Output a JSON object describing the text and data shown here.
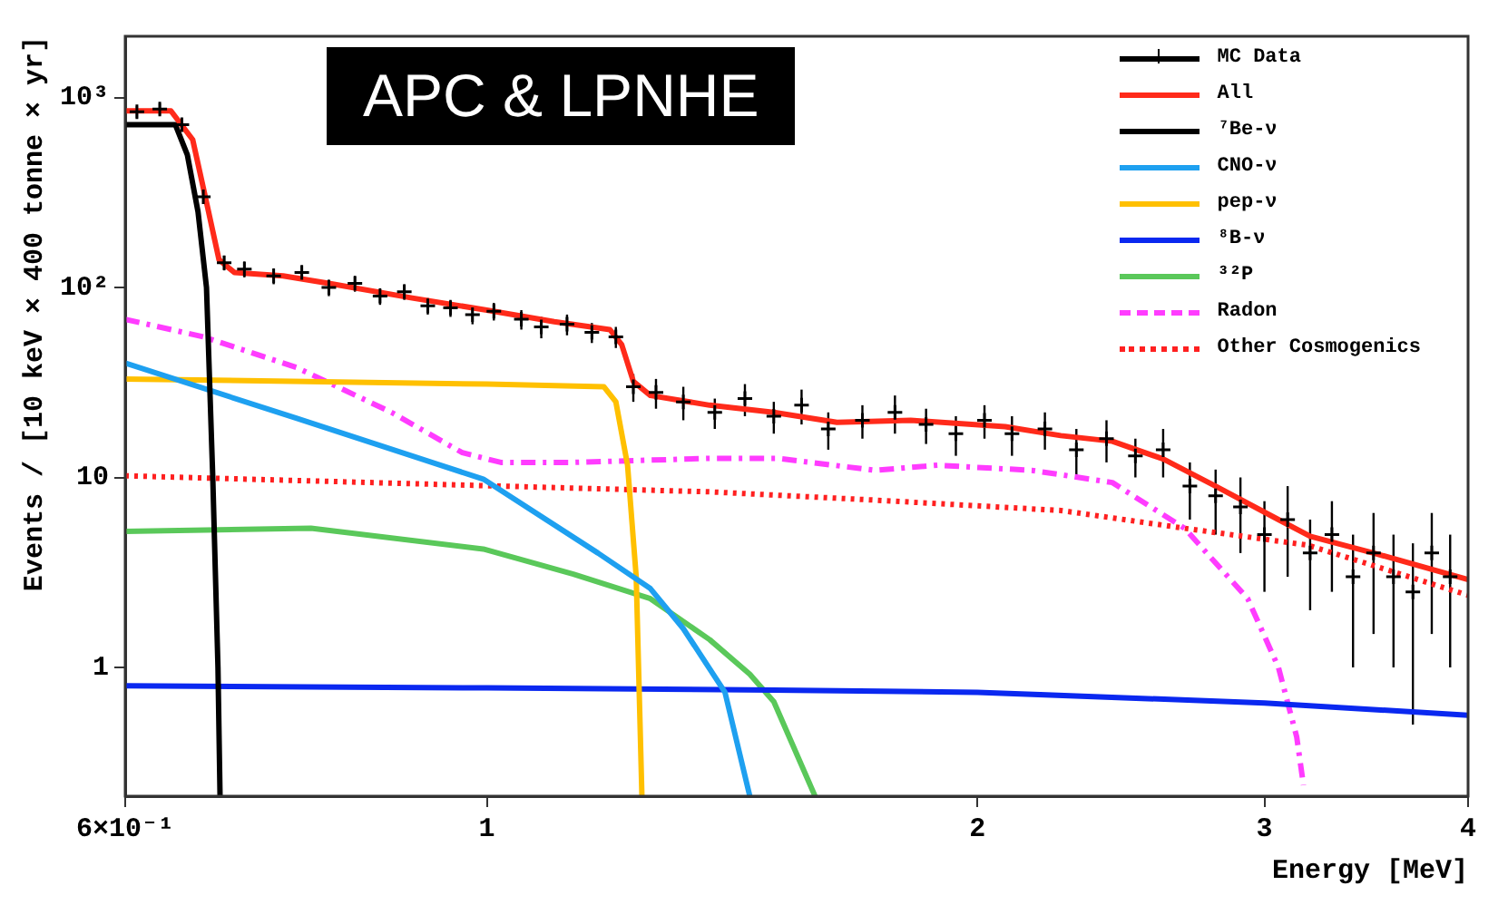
{
  "chart_data": {
    "type": "line",
    "xlabel": "Energy [MeV]",
    "ylabel": "Events / [10 keV × 400 tonne × yr]",
    "annotations": [
      "APC & LPNHE"
    ],
    "log": "xy",
    "grid": false,
    "legend": "top right",
    "xlim": [
      0.6,
      4
    ],
    "xticks": [
      {
        "value": 0.6,
        "label": "6×10⁻¹"
      },
      1,
      2,
      3,
      4
    ],
    "ylim": [
      0.21,
      2100
    ],
    "yticks": [
      1,
      10,
      {
        "value": 100,
        "label": "10²"
      },
      {
        "value": 1000,
        "label": "10³"
      }
    ],
    "series": [
      {
        "name": "MC Data",
        "type": "scatter",
        "marker": "cross",
        "color": "#000000",
        "x": [
          0.61,
          0.63,
          0.65,
          0.67,
          0.69,
          0.71,
          0.74,
          0.77,
          0.8,
          0.83,
          0.86,
          0.89,
          0.92,
          0.95,
          0.98,
          1.01,
          1.05,
          1.08,
          1.12,
          1.16,
          1.2,
          1.23,
          1.27,
          1.32,
          1.38,
          1.44,
          1.5,
          1.56,
          1.62,
          1.7,
          1.78,
          1.86,
          1.94,
          2.02,
          2.1,
          2.2,
          2.3,
          2.4,
          2.5,
          2.6,
          2.7,
          2.8,
          2.9,
          3.0,
          3.1,
          3.2,
          3.3,
          3.4,
          3.5,
          3.6,
          3.7,
          3.8,
          3.9
        ],
        "values": [
          840,
          870,
          720,
          300,
          135,
          125,
          115,
          120,
          100,
          105,
          90,
          95,
          80,
          78,
          72,
          75,
          68,
          62,
          64,
          58,
          55,
          30,
          28,
          25,
          22,
          26,
          21,
          24,
          18,
          20,
          22,
          19,
          17,
          20,
          17,
          18,
          14,
          16,
          13,
          14,
          9,
          8,
          7,
          5,
          6,
          4,
          5,
          3,
          4,
          3,
          2.5,
          4,
          3
        ],
        "errors": [
          60,
          60,
          55,
          25,
          12,
          12,
          11,
          11,
          10,
          10,
          9,
          9,
          8,
          8,
          8,
          8,
          8,
          8,
          8,
          7,
          7,
          5,
          5,
          5,
          4,
          5,
          4,
          5,
          4,
          4,
          5,
          4,
          4,
          4,
          4,
          4,
          4,
          4,
          3,
          4,
          3,
          3,
          3,
          2.5,
          3,
          2,
          2.5,
          2,
          2.5,
          2,
          2,
          2.5,
          2
        ]
      },
      {
        "name": "All",
        "color": "#ff2a1a",
        "line_style": "solid",
        "x": [
          0.6,
          0.64,
          0.66,
          0.675,
          0.685,
          0.7,
          0.75,
          0.8,
          0.9,
          1.0,
          1.1,
          1.19,
          1.21,
          1.23,
          1.26,
          1.37,
          1.5,
          1.64,
          1.82,
          2.08,
          2.25,
          2.42,
          2.6,
          2.8,
          3.06,
          3.2,
          3.5,
          4
        ],
        "values": [
          850,
          850,
          600,
          250,
          140,
          120,
          115,
          105,
          88,
          76,
          66,
          60,
          50,
          32,
          27,
          24,
          22,
          19.5,
          20,
          18.5,
          16.6,
          15.5,
          12.5,
          9,
          6,
          4.9,
          4,
          2.9
        ]
      },
      {
        "name": "⁷Be-ν",
        "color": "#000000",
        "line_style": "solid",
        "x": [
          0.6,
          0.644,
          0.655,
          0.665,
          0.673,
          0.679,
          0.684,
          0.686
        ],
        "values": [
          720,
          720,
          500,
          250,
          100,
          10,
          1,
          0.21
        ]
      },
      {
        "name": "CNO-ν",
        "color": "#1ea0f0",
        "line_style": "solid",
        "x": [
          0.6,
          0.764,
          0.995,
          1.17,
          1.26,
          1.32,
          1.4,
          1.45
        ],
        "values": [
          40,
          20.5,
          9.8,
          4,
          2.6,
          1.6,
          0.74,
          0.21
        ]
      },
      {
        "name": "pep-ν",
        "color": "#ffc000",
        "line_style": "solid",
        "x": [
          0.6,
          1.0,
          1.18,
          1.2,
          1.22,
          1.235,
          1.245
        ],
        "values": [
          33,
          31,
          30,
          25,
          11.6,
          3,
          0.21
        ]
      },
      {
        "name": "⁸B-ν",
        "color": "#0a28f0",
        "line_style": "solid",
        "x": [
          0.6,
          1.0,
          1.5,
          2,
          3,
          4
        ],
        "values": [
          0.8,
          0.78,
          0.76,
          0.74,
          0.65,
          0.56
        ]
      },
      {
        "name": "³²P",
        "color": "#5ac85a",
        "line_style": "solid",
        "x": [
          0.6,
          0.78,
          0.995,
          1.13,
          1.26,
          1.37,
          1.45,
          1.5,
          1.59
        ],
        "values": [
          5.2,
          5.4,
          4.2,
          3.1,
          2.3,
          1.4,
          0.92,
          0.66,
          0.21
        ]
      },
      {
        "name": "Radon",
        "color": "#ff3cff",
        "line_style": "dashdot",
        "x": [
          0.6,
          0.67,
          0.764,
          0.874,
          0.966,
          1.02,
          1.13,
          1.37,
          1.51,
          1.73,
          1.89,
          2.16,
          2.42,
          2.68,
          2.93,
          3.06,
          3.14,
          3.17
        ],
        "values": [
          68,
          55,
          38,
          22,
          13.5,
          12,
          12,
          12.6,
          12.6,
          10.9,
          11.6,
          10.9,
          9.4,
          5.4,
          2.3,
          1.0,
          0.43,
          0.24
        ]
      },
      {
        "name": "Other Cosmogenics",
        "color": "#ff2020",
        "line_style": "dotted",
        "x": [
          0.6,
          1.37,
          1.73,
          2.25,
          2.68,
          3.19,
          4.0
        ],
        "values": [
          10.2,
          8.4,
          7.6,
          6.7,
          5.4,
          4.4,
          2.4
        ]
      }
    ]
  }
}
